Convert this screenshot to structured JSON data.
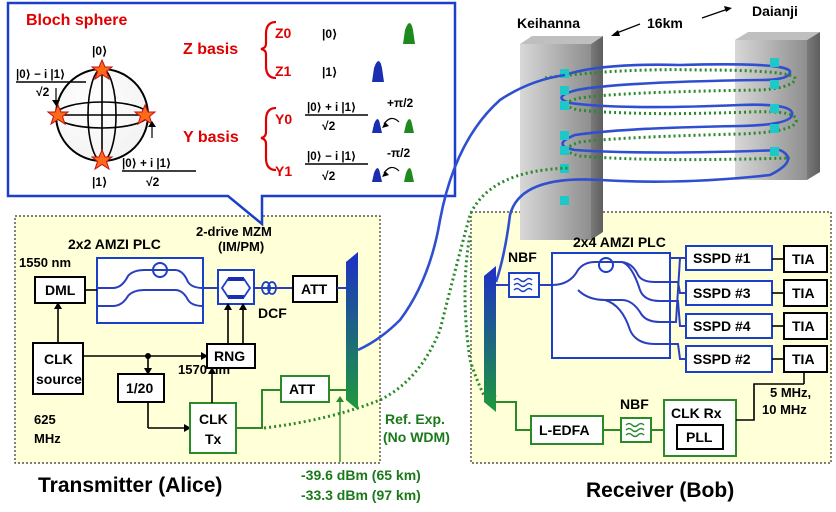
{
  "bloch": {
    "title": "Bloch sphere",
    "state_top": "|0⟩",
    "state_bottom": "|1⟩",
    "state_left_num": "|0⟩ − i |1⟩",
    "state_left_den": "√2",
    "state_right_num": "|0⟩ + i |1⟩",
    "state_right_den": "√2"
  },
  "bases": {
    "z_label": "Z basis",
    "z0": "Z0",
    "z0_state": "|0⟩",
    "z1": "Z1",
    "z1_state": "|1⟩",
    "y_label": "Y basis",
    "y0": "Y0",
    "y0_num": "|0⟩ + i |1⟩",
    "y0_den": "√2",
    "y0_phase": "+π/2",
    "y1": "Y1",
    "y1_num": "|0⟩ − i |1⟩",
    "y1_den": "√2",
    "y1_phase": "-π/2"
  },
  "sites": {
    "left": "Keihanna",
    "right": "Daianji",
    "distance": "16km"
  },
  "alice": {
    "caption": "Transmitter (Alice)",
    "amzi_label": "2x2 AMZI PLC",
    "mzm_label_1": "2-drive MZM",
    "mzm_label_2": "(IM/PM)",
    "wavelength_1": "1550 nm",
    "dml": "DML",
    "att1": "ATT",
    "dcf": "DCF",
    "clk_source_1": "CLK",
    "clk_source_2": "source",
    "rng": "RNG",
    "divider": "1/20",
    "wavelength_2": "1570 nm",
    "att2": "ATT",
    "clk_tx_1": "CLK",
    "clk_tx_2": "Tx",
    "freq_1": "625",
    "freq_2": "MHz"
  },
  "bob": {
    "caption": "Receiver (Bob)",
    "amzi_label": "2x4 AMZI PLC",
    "nbf1": "NBF",
    "nbf2": "NBF",
    "sspd": [
      "SSPD #1",
      "SSPD #3",
      "SSPD #4",
      "SSPD #2"
    ],
    "tia": [
      "TIA",
      "TIA",
      "TIA",
      "TIA"
    ],
    "ledfa": "L-EDFA",
    "clk_rx": "CLK Rx",
    "pll": "PLL",
    "freq_1": "5 MHz,",
    "freq_2": "10 MHz"
  },
  "ref_exp_1": "Ref. Exp.",
  "ref_exp_2": "(No WDM)",
  "power_1": "-39.6 dBm (65 km)",
  "power_2": "-33.3 dBm (97 km)",
  "colors": {
    "panel_fill": "#ffffd8",
    "red": "#e00000",
    "green": "#1a7a1a",
    "blue": "#2f4fd0",
    "tower": "#a0a0a0",
    "pulse_green": "#1e8a1e",
    "pulse_blue": "#1a2fb0"
  }
}
